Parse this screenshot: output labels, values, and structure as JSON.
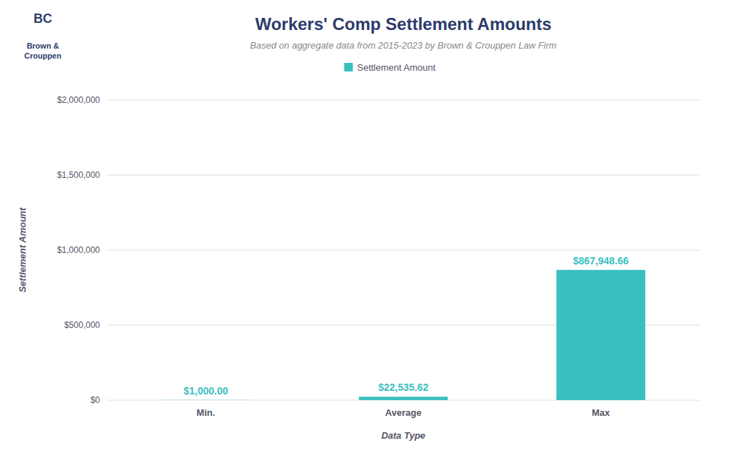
{
  "chart_data": {
    "type": "bar",
    "title": "Workers' Comp Settlement Amounts",
    "subtitle": "Based on aggregate data from 2015-2023 by Brown & Crouppen Law Firm",
    "categories": [
      "Min.",
      "Average",
      "Max"
    ],
    "series": [
      {
        "name": "Settlement Amount",
        "color": "#3abfbf",
        "values": [
          1000.0,
          22535.62,
          867948.66
        ],
        "value_labels": [
          "$1,000.00",
          "$22,535.62",
          "$867,948.66"
        ]
      }
    ],
    "xlabel": "Data Type",
    "ylabel": "Settlement Amount",
    "ylim": [
      0,
      2000000
    ],
    "yticks": [
      {
        "value": 0,
        "label": "$0"
      },
      {
        "value": 500000,
        "label": "$500,000"
      },
      {
        "value": 1000000,
        "label": "$1,000,000"
      },
      {
        "value": 1500000,
        "label": "$1,500,000"
      },
      {
        "value": 2000000,
        "label": "$2,000,000"
      }
    ],
    "grid": true,
    "data_labels": true,
    "legend": "top",
    "annotations": [
      "BC",
      "Brown &\nCrouppen"
    ]
  }
}
